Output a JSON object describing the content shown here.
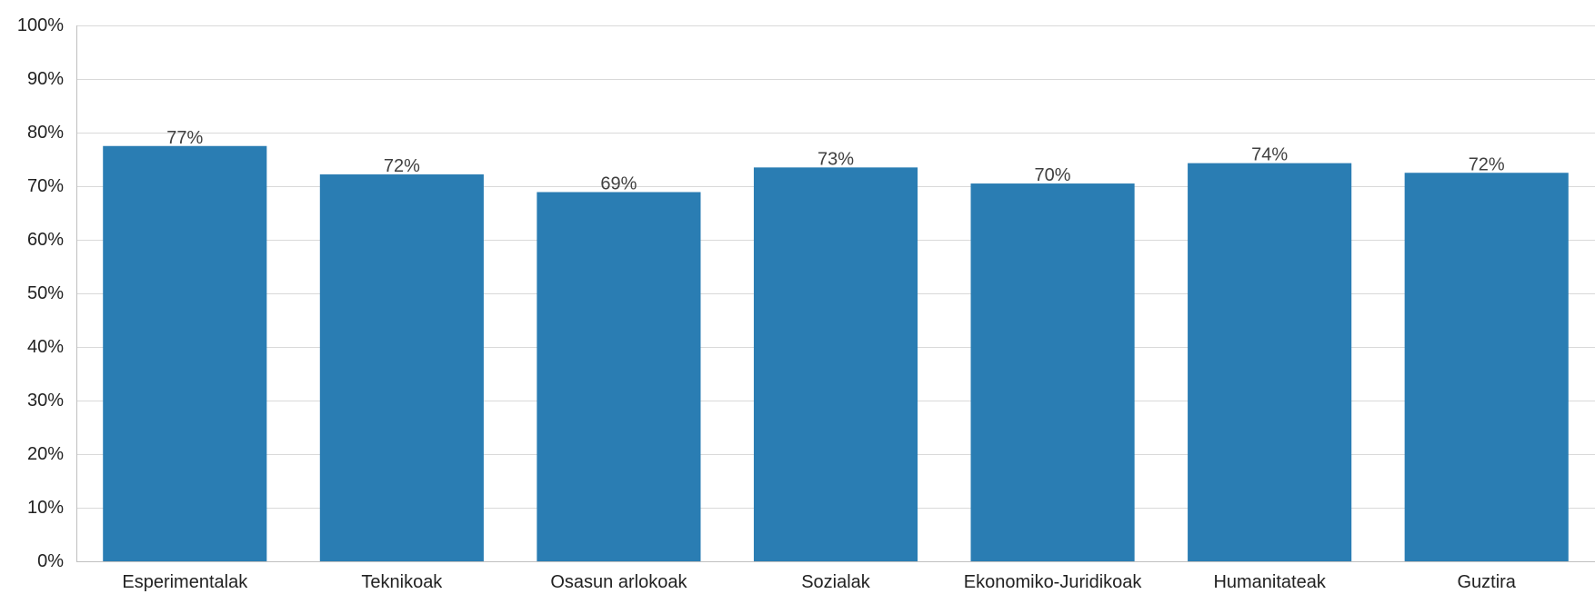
{
  "chart_data": {
    "type": "bar",
    "categories": [
      "Esperimentalak",
      "Teknikoak",
      "Osasun arlokoak",
      "Sozialak",
      "Ekonomiko-Juridikoak",
      "Humanitateak",
      "Guztira"
    ],
    "values": [
      77.5,
      72.2,
      68.9,
      73.5,
      70.5,
      74.3,
      72.5
    ],
    "data_labels": [
      "77%",
      "72%",
      "69%",
      "73%",
      "70%",
      "74%",
      "72%"
    ],
    "y_ticks": [
      0,
      10,
      20,
      30,
      40,
      50,
      60,
      70,
      80,
      90,
      100
    ],
    "y_tick_labels": [
      "0%",
      "10%",
      "20%",
      "30%",
      "40%",
      "50%",
      "60%",
      "70%",
      "80%",
      "90%",
      "100%"
    ],
    "ylim": [
      0,
      100
    ],
    "title": "",
    "xlabel": "",
    "ylabel": "",
    "grid": true,
    "legend": "none",
    "bar_color": "#2a7db3"
  }
}
